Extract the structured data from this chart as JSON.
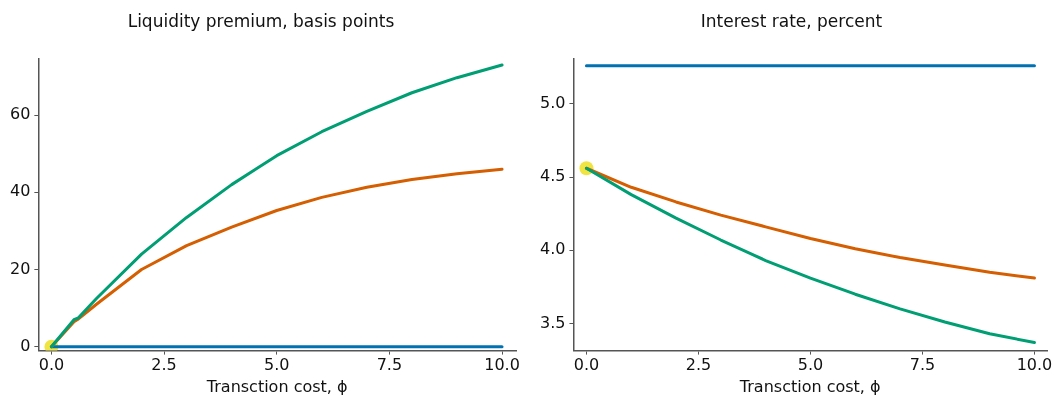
{
  "chart_data": [
    {
      "type": "line",
      "title": "Liquidity premium, basis points",
      "xlabel": "Transction cost, ϕ",
      "xlim": [
        -0.29,
        10.31
      ],
      "xticks": [
        {
          "value": 0,
          "label": "0.0"
        },
        {
          "value": 2.5,
          "label": "2.5"
        },
        {
          "value": 5,
          "label": "5.0"
        },
        {
          "value": 7.5,
          "label": "7.5"
        },
        {
          "value": 10,
          "label": "10.0"
        }
      ],
      "ylim": [
        -1,
        74.7
      ],
      "yticks": [
        0,
        20,
        40,
        60
      ],
      "grid": false,
      "legend": false,
      "line_style": "solid",
      "series": [
        {
          "type": "scatter",
          "marker": "circle",
          "color": "#f0e442",
          "x": [
            0
          ],
          "values": [
            0
          ]
        },
        {
          "color": "#0072b2",
          "x": [
            0,
            10
          ],
          "values": [
            0,
            0
          ]
        },
        {
          "color": "#d55e00",
          "x": [
            0,
            0.5,
            0.6,
            1,
            2,
            3,
            4,
            5,
            6,
            7,
            8,
            9,
            10
          ],
          "values": [
            0,
            6.5,
            7.2,
            11,
            20,
            26.2,
            31,
            35.3,
            38.7,
            41.3,
            43.3,
            44.8,
            46
          ]
        },
        {
          "color": "#009e73",
          "x": [
            0,
            0.5,
            0.6,
            1,
            2,
            3,
            4,
            5,
            6,
            7,
            8,
            9,
            10
          ],
          "values": [
            0,
            7,
            7.5,
            12.5,
            24,
            33.5,
            42,
            49.5,
            55.7,
            61,
            65.8,
            69.7,
            73
          ]
        }
      ]
    },
    {
      "type": "line",
      "title": "Interest rate, percent",
      "xlabel": "Transction cost, ϕ",
      "xlim": [
        -0.29,
        10.28
      ],
      "xticks": [
        {
          "value": 0,
          "label": "0.0"
        },
        {
          "value": 2.5,
          "label": "2.5"
        },
        {
          "value": 5,
          "label": "5.0"
        },
        {
          "value": 7.5,
          "label": "7.5"
        },
        {
          "value": 10,
          "label": "10.0"
        }
      ],
      "ylim": [
        3.315,
        5.31
      ],
      "yticks": [
        {
          "value": 3.5,
          "label": "3.5"
        },
        {
          "value": 4,
          "label": "4.0"
        },
        {
          "value": 4.5,
          "label": "4.5"
        },
        {
          "value": 5,
          "label": "5.0"
        }
      ],
      "grid": false,
      "legend": false,
      "line_style": "solid",
      "series": [
        {
          "type": "scatter",
          "marker": "circle",
          "color": "#f0e442",
          "x": [
            0
          ],
          "values": [
            4.56
          ]
        },
        {
          "color": "#0072b2",
          "x": [
            0,
            10
          ],
          "values": [
            5.26,
            5.26
          ]
        },
        {
          "color": "#d55e00",
          "x": [
            0,
            1,
            2,
            3,
            4,
            5,
            6,
            7,
            8,
            9,
            10
          ],
          "values": [
            4.56,
            4.43,
            4.33,
            4.24,
            4.16,
            4.08,
            4.01,
            3.95,
            3.9,
            3.85,
            3.81
          ]
        },
        {
          "color": "#009e73",
          "x": [
            0,
            1,
            2,
            3,
            4,
            5,
            6,
            7,
            8,
            9,
            10
          ],
          "values": [
            4.56,
            4.38,
            4.22,
            4.07,
            3.93,
            3.81,
            3.7,
            3.6,
            3.51,
            3.43,
            3.37
          ]
        }
      ]
    }
  ]
}
